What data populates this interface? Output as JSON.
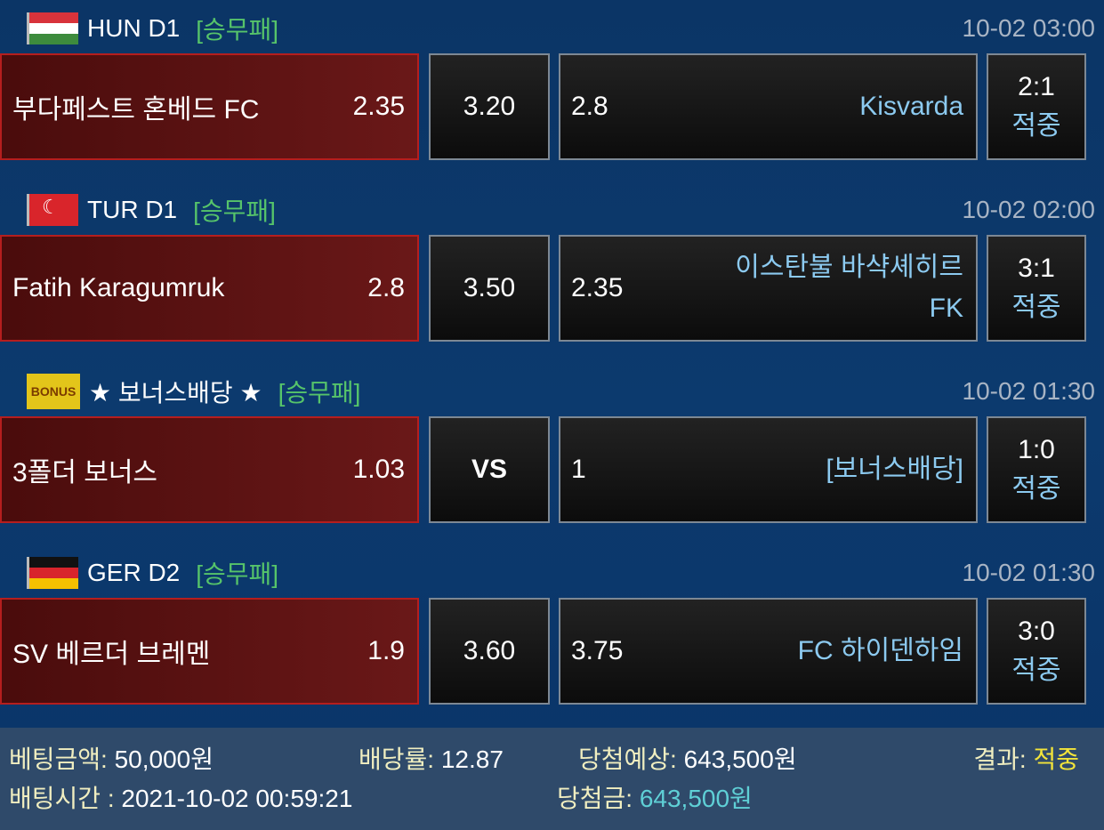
{
  "matches": [
    {
      "flag": "hungary-flag",
      "league": "HUN D1",
      "type": "[승무패]",
      "time": "10-02 03:00",
      "home": "부다페스트 혼베드 FC",
      "home_odds": "2.35",
      "draw": "3.20",
      "away_odds": "2.8",
      "away": "Kisvarda",
      "score": "2:1",
      "result": "적중"
    },
    {
      "flag": "turkey-flag",
      "league": "TUR D1",
      "type": "[승무패]",
      "time": "10-02 02:00",
      "home": "Fatih Karagumruk",
      "home_odds": "2.8",
      "draw": "3.50",
      "away_odds": "2.35",
      "away": "이스탄불 바샥셰히르 FK",
      "score": "3:1",
      "result": "적중"
    },
    {
      "flag": "bonus-badge",
      "flag_text": "BONUS",
      "league": "★ 보너스배당 ★",
      "type": "[승무패]",
      "time": "10-02 01:30",
      "home": "3폴더 보너스",
      "home_odds": "1.03",
      "draw": "VS",
      "away_odds": "1",
      "away": "[보너스배당]",
      "score": "1:0",
      "result": "적중"
    },
    {
      "flag": "germany-flag",
      "league": "GER D2",
      "type": "[승무패]",
      "time": "10-02 01:30",
      "home": "SV 베르더 브레멘",
      "home_odds": "1.9",
      "draw": "3.60",
      "away_odds": "3.75",
      "away": "FC 하이덴하임",
      "score": "3:0",
      "result": "적중"
    }
  ],
  "summary": {
    "bet_amount_label": "베팅금액:",
    "bet_amount": "50,000원",
    "odds_label": "배당률:",
    "odds": "12.87",
    "expected_label": "당첨예상:",
    "expected": "643,500원",
    "result_label": "결과:",
    "result": "적중",
    "bet_time_label": "배팅시간 :",
    "bet_time": "2021-10-02 00:59:21",
    "win_label": "당첨금:",
    "win": "643,500원"
  },
  "colors": {
    "type": "#56c46a",
    "away_name": "#8ccaf0",
    "result_yellow": "#f2e43a",
    "win_cyan": "#5fd0d6",
    "home_border": "#b51e1e"
  }
}
